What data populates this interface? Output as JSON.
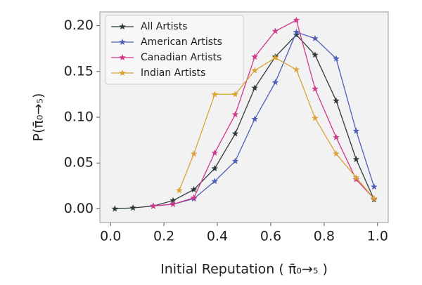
{
  "chart_data": {
    "type": "line",
    "xlabel": "Initial Reputation ( π̄₀→₅ )",
    "ylabel": "P(π̄₀→₅)",
    "xlim": [
      -0.04,
      1.04
    ],
    "ylim": [
      -0.015,
      0.215
    ],
    "xticks": [
      {
        "value": 0,
        "label": "0.0"
      },
      0.2,
      0.4,
      0.6,
      0.8,
      {
        "value": 1,
        "label": "1.0"
      }
    ],
    "yticks": [
      {
        "value": 0,
        "label": "0.00"
      },
      0.05,
      {
        "value": 0.1,
        "label": "0.10"
      },
      0.15,
      {
        "value": 0.2,
        "label": "0.20"
      }
    ],
    "legend": "upper left",
    "series": [
      {
        "name": "All Artists",
        "color": "#2e3a3a",
        "x": [
          0.016,
          0.084,
          0.16,
          0.234,
          0.312,
          0.39,
          0.467,
          0.54,
          0.617,
          0.696,
          0.766,
          0.845,
          0.92,
          0.987
        ],
        "values": [
          0.0,
          0.001,
          0.003,
          0.009,
          0.021,
          0.044,
          0.082,
          0.132,
          0.166,
          0.19,
          0.168,
          0.118,
          0.054,
          0.01
        ]
      },
      {
        "name": "American Artists",
        "color": "#4f5fb5",
        "x": [
          0.16,
          0.234,
          0.312,
          0.39,
          0.467,
          0.54,
          0.617,
          0.696,
          0.766,
          0.845,
          0.92,
          0.987
        ],
        "values": [
          0.003,
          0.005,
          0.011,
          0.03,
          0.052,
          0.098,
          0.138,
          0.193,
          0.186,
          0.164,
          0.085,
          0.024
        ]
      },
      {
        "name": "Canadian Artists",
        "color": "#d0388c",
        "x": [
          0.16,
          0.234,
          0.312,
          0.39,
          0.467,
          0.54,
          0.617,
          0.696,
          0.766,
          0.845,
          0.92,
          0.987
        ],
        "values": [
          0.003,
          0.005,
          0.012,
          0.061,
          0.103,
          0.166,
          0.194,
          0.206,
          0.131,
          0.078,
          0.032,
          0.011
        ]
      },
      {
        "name": "Indian Artists",
        "color": "#dba236",
        "x": [
          0.257,
          0.312,
          0.39,
          0.467,
          0.54,
          0.617,
          0.696,
          0.766,
          0.845,
          0.92,
          0.987
        ],
        "values": [
          0.02,
          0.06,
          0.125,
          0.125,
          0.151,
          0.165,
          0.152,
          0.099,
          0.06,
          0.034,
          0.011
        ]
      }
    ]
  }
}
